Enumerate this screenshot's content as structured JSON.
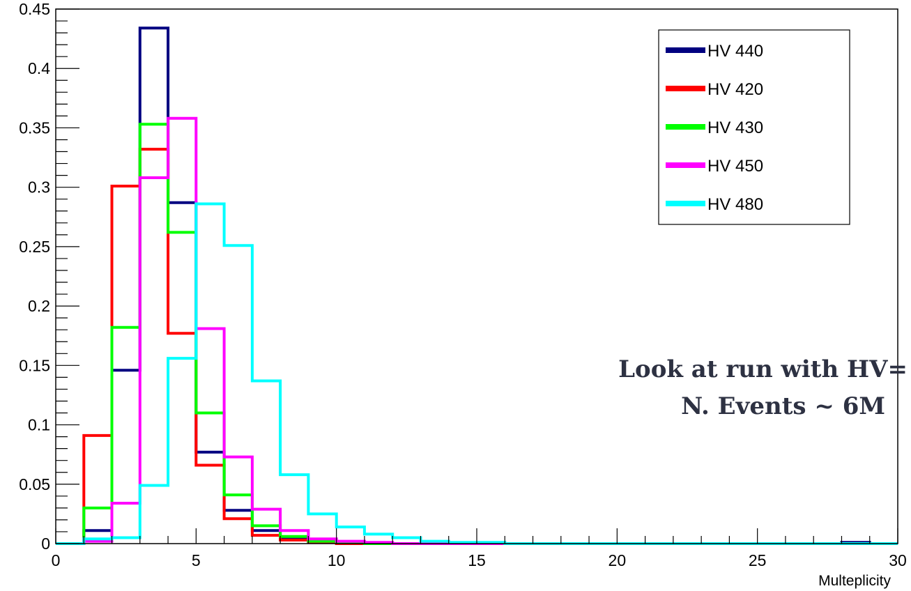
{
  "chart_data": {
    "type": "histogram",
    "title": "",
    "xlabel": "Multeplicity",
    "ylabel": "",
    "xlim": [
      0,
      30
    ],
    "ylim": [
      0,
      0.45
    ],
    "bin_edges": [
      0,
      1,
      2,
      3,
      4,
      5,
      6,
      7,
      8,
      9,
      10,
      11,
      12,
      13,
      14,
      15,
      16,
      17,
      18,
      19,
      20,
      21,
      22,
      23,
      24,
      25,
      26,
      27,
      28,
      29,
      30
    ],
    "x_ticks": [
      {
        "value": 0,
        "label": "0"
      },
      {
        "value": 5,
        "label": "5"
      },
      {
        "value": 10,
        "label": "10"
      },
      {
        "value": 15,
        "label": "15"
      },
      {
        "value": 20,
        "label": "20"
      },
      {
        "value": 25,
        "label": "25"
      },
      {
        "value": 30,
        "label": "30"
      }
    ],
    "y_ticks": [
      {
        "value": 0,
        "label": "0"
      },
      {
        "value": 0.05,
        "label": "0.05"
      },
      {
        "value": 0.1,
        "label": "0.1"
      },
      {
        "value": 0.15,
        "label": "0.15"
      },
      {
        "value": 0.2,
        "label": "0.2"
      },
      {
        "value": 0.25,
        "label": "0.25"
      },
      {
        "value": 0.3,
        "label": "0.3"
      },
      {
        "value": 0.35,
        "label": "0.35"
      },
      {
        "value": 0.4,
        "label": "0.4"
      },
      {
        "value": 0.45,
        "label": "0.45"
      }
    ],
    "grid": false,
    "legend_position": "top-right",
    "series": [
      {
        "name": "HV 440",
        "color": "#000080",
        "values": [
          0,
          0.011,
          0.146,
          0.434,
          0.287,
          0.077,
          0.028,
          0.011,
          0.004,
          0.002,
          0.001,
          0,
          0,
          0,
          0,
          0,
          0,
          0,
          0,
          0,
          0,
          0,
          0,
          0,
          0,
          0,
          0,
          0,
          0.001,
          0
        ]
      },
      {
        "name": "HV 420",
        "color": "#ff0000",
        "values": [
          0,
          0.091,
          0.301,
          0.332,
          0.177,
          0.066,
          0.021,
          0.007,
          0.003,
          0.001,
          0,
          0,
          0,
          0,
          0,
          0,
          0,
          0,
          0,
          0,
          0,
          0,
          0,
          0,
          0,
          0,
          0,
          0,
          0,
          0
        ]
      },
      {
        "name": "HV 430",
        "color": "#00ff00",
        "values": [
          0,
          0.03,
          0.182,
          0.353,
          0.262,
          0.11,
          0.041,
          0.015,
          0.006,
          0.002,
          0.001,
          0,
          0,
          0,
          0,
          0,
          0,
          0,
          0,
          0,
          0,
          0,
          0,
          0,
          0,
          0,
          0,
          0,
          0,
          0
        ]
      },
      {
        "name": "HV 450",
        "color": "#ff00ff",
        "values": [
          0,
          0.002,
          0.034,
          0.308,
          0.358,
          0.181,
          0.073,
          0.029,
          0.011,
          0.004,
          0.002,
          0.001,
          0,
          0,
          0,
          0,
          0,
          0,
          0,
          0,
          0,
          0,
          0,
          0,
          0,
          0,
          0,
          0,
          0,
          0
        ]
      },
      {
        "name": "HV 480",
        "color": "#00ffff",
        "values": [
          0,
          0.004,
          0.005,
          0.049,
          0.156,
          0.286,
          0.251,
          0.137,
          0.058,
          0.025,
          0.014,
          0.008,
          0.005,
          0.002,
          0.001,
          0.001,
          0,
          0,
          0,
          0,
          0,
          0,
          0,
          0,
          0,
          0,
          0,
          0,
          0,
          0
        ]
      }
    ],
    "annotations": [
      "Look at run with HV=",
      "N. Events ~ 6M"
    ]
  }
}
